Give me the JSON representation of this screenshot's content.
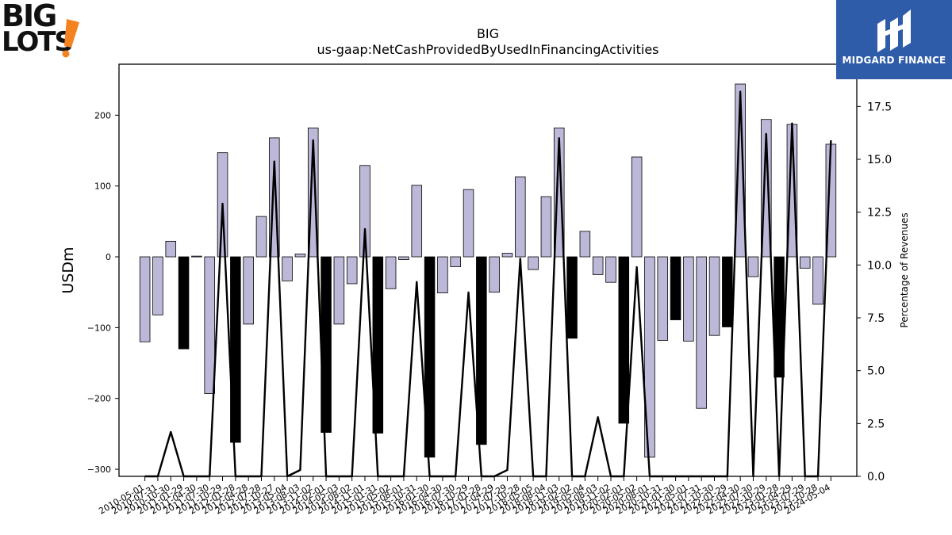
{
  "logos": {
    "left_brand": "BIG LOTS!",
    "left_line1": "BIG",
    "left_line2": "LOTS",
    "right_brand": "MIDGARD FINANCE"
  },
  "colors": {
    "bar_fill": "#bcb8d8",
    "bar_highlight": "#000000",
    "line": "#000000",
    "logo_bg": "#2f5ca8",
    "logo_accent": "#f58220"
  },
  "chart_data": {
    "type": "bar",
    "title": "BIG",
    "subtitle": "us-gaap:NetCashProvidedByUsedInFinancingActivities",
    "ylabel": "USDm",
    "y2label": "Percentage of Revenues",
    "ylim": [
      -310,
      272
    ],
    "y2lim": [
      0,
      19.5
    ],
    "yticks": [
      -300,
      -200,
      -100,
      0,
      100,
      200
    ],
    "y2ticks": [
      "0.0",
      "2.5",
      "5.0",
      "7.5",
      "10.0",
      "12.5",
      "15.0",
      "17.5"
    ],
    "categories": [
      "2010-05-01",
      "2010-07-31",
      "2010-10-30",
      "2011-01-29",
      "2011-04-30",
      "2011-07-30",
      "2011-10-29",
      "2012-01-28",
      "2012-04-28",
      "2012-07-28",
      "2012-10-27",
      "2013-05-04",
      "2013-08-03",
      "2013-11-02",
      "2014-02-01",
      "2014-05-03",
      "2014-08-02",
      "2014-11-01",
      "2015-01-31",
      "2015-05-02",
      "2015-08-01",
      "2015-10-31",
      "2016-01-30",
      "2016-04-30",
      "2016-07-30",
      "2016-10-29",
      "2017-01-28",
      "2017-04-29",
      "2017-07-29",
      "2017-10-28",
      "2018-05-05",
      "2018-08-04",
      "2018-11-03",
      "2019-02-02",
      "2019-05-04",
      "2019-08-03",
      "2019-11-02",
      "2020-02-01",
      "2020-05-02",
      "2020-08-01",
      "2020-10-31",
      "2021-01-30",
      "2021-05-01",
      "2021-07-31",
      "2021-10-30",
      "2022-01-29",
      "2022-04-30",
      "2022-07-30",
      "2022-10-29",
      "2023-01-28",
      "2023-04-29",
      "2023-07-29",
      "2023-10-28",
      "2024-05-04"
    ],
    "series": [
      {
        "values": [
          -120,
          -82,
          22,
          -130,
          1,
          -193,
          147,
          -262,
          -95,
          57,
          168,
          -34,
          4,
          182,
          -248,
          -95,
          -38,
          129,
          -249,
          -45,
          -4,
          101,
          -283,
          -51,
          -14,
          95,
          -265,
          -50,
          5,
          113,
          -18,
          85,
          182,
          -115,
          36,
          -25,
          -36,
          -235,
          141,
          -283,
          -118,
          -89,
          -119,
          -214,
          -111,
          -99,
          244,
          -28,
          194,
          -170,
          187,
          -16,
          -67,
          159
        ],
        "highlight": [
          false,
          false,
          false,
          true,
          false,
          false,
          false,
          true,
          false,
          false,
          false,
          false,
          false,
          false,
          true,
          false,
          false,
          false,
          true,
          false,
          false,
          false,
          true,
          false,
          false,
          false,
          true,
          false,
          false,
          false,
          false,
          false,
          false,
          true,
          false,
          false,
          false,
          true,
          false,
          false,
          false,
          true,
          false,
          false,
          false,
          true,
          false,
          false,
          false,
          true,
          false,
          false,
          false,
          false
        ]
      },
      {
        "axis": "right",
        "type": "line",
        "values": [
          0,
          0,
          2.1,
          0,
          0,
          0,
          12.9,
          0,
          0,
          0,
          14.9,
          0,
          0.3,
          15.9,
          0,
          0,
          0,
          11.7,
          0,
          0,
          0,
          9.2,
          0,
          0,
          0,
          8.7,
          0,
          0,
          0.3,
          10.3,
          0,
          0,
          16.0,
          0,
          0,
          2.8,
          0,
          0,
          9.9,
          0,
          0,
          0,
          0,
          0,
          0,
          0,
          18.2,
          0,
          16.2,
          0,
          16.7,
          0,
          0,
          15.9
        ]
      }
    ]
  }
}
